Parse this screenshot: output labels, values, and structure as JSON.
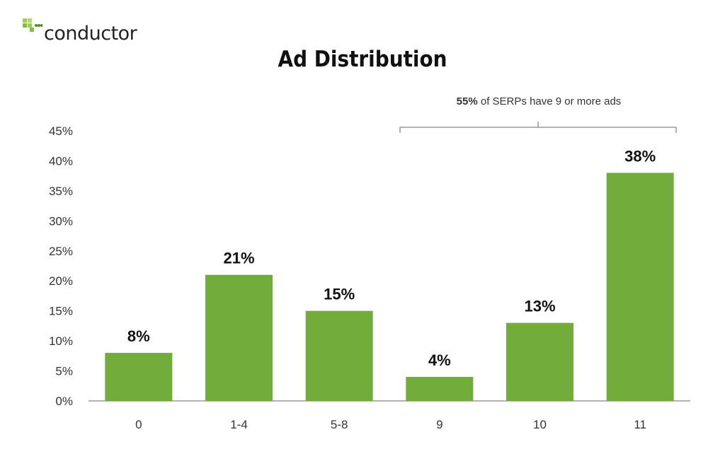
{
  "logo": {
    "text": "conductor"
  },
  "chart_data": {
    "type": "bar",
    "title": "Ad Distribution",
    "categories": [
      "0",
      "1-4",
      "5-8",
      "9",
      "10",
      "11"
    ],
    "values": [
      8,
      21,
      15,
      4,
      13,
      38
    ],
    "data_labels": [
      "8%",
      "21%",
      "15%",
      "4%",
      "13%",
      "38%"
    ],
    "yticks": [
      "0%",
      "5%",
      "10%",
      "15%",
      "20%",
      "25%",
      "30%",
      "35%",
      "40%",
      "45%"
    ],
    "ylim": [
      0,
      45
    ],
    "xlabel": "",
    "ylabel": "",
    "grid": false,
    "bar_color": "#72ac3a",
    "annotation": {
      "bold": "55%",
      "text": " of SERPs have 9 or more ads",
      "spans_categories": [
        "9",
        "10",
        "11"
      ]
    }
  }
}
